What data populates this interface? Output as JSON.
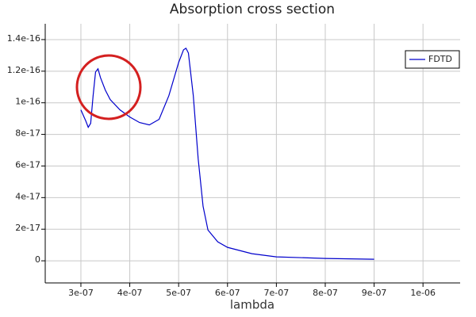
{
  "chart_data": {
    "type": "line",
    "title": "Absorption cross section",
    "x_label": "lambda",
    "x": [
      3e-07,
      3.1e-07,
      3.15e-07,
      3.2e-07,
      3.25e-07,
      3.3e-07,
      3.35e-07,
      3.4e-07,
      3.5e-07,
      3.6e-07,
      3.8e-07,
      4e-07,
      4.2e-07,
      4.4e-07,
      4.6e-07,
      4.8e-07,
      5e-07,
      5.1e-07,
      5.15e-07,
      5.2e-07,
      5.3e-07,
      5.4e-07,
      5.5e-07,
      5.6e-07,
      5.8e-07,
      6e-07,
      6.5e-07,
      7e-07,
      8e-07,
      9e-07
    ],
    "series": [
      {
        "name": "FDTD",
        "color": "#0000cc",
        "values": [
          9.55e-17,
          8.85e-17,
          8.45e-17,
          8.7e-17,
          1.045e-16,
          1.195e-16,
          1.215e-16,
          1.16e-16,
          1.08e-16,
          1.02e-16,
          9.55e-17,
          9.1e-17,
          8.75e-17,
          8.6e-17,
          8.95e-17,
          1.045e-16,
          1.255e-16,
          1.335e-16,
          1.345e-16,
          1.315e-16,
          1.045e-16,
          6.45e-17,
          3.45e-17,
          1.95e-17,
          1.2e-17,
          8.5e-18,
          4.5e-18,
          2.5e-18,
          1.5e-18,
          1e-18
        ]
      }
    ],
    "xlim": [
      2.27e-07,
      1.076e-06
    ],
    "xticks": [
      {
        "value": 3e-07,
        "label": "3e-07"
      },
      {
        "value": 4e-07,
        "label": "4e-07"
      },
      {
        "value": 5e-07,
        "label": "5e-07"
      },
      {
        "value": 6e-07,
        "label": "6e-07"
      },
      {
        "value": 7e-07,
        "label": "7e-07"
      },
      {
        "value": 8e-07,
        "label": "8e-07"
      },
      {
        "value": 9e-07,
        "label": "9e-07"
      },
      {
        "value": 1e-06,
        "label": "1e-06"
      }
    ],
    "ylim": [
      -1.4e-17,
      1.5e-16
    ],
    "yticks": [
      0,
      {
        "value": 2e-17,
        "label": "2e-17"
      },
      {
        "value": 4e-17,
        "label": "4e-17"
      },
      {
        "value": 6e-17,
        "label": "6e-17"
      },
      {
        "value": 8e-17,
        "label": "8e-17"
      },
      {
        "value": 1e-16,
        "label": "1e-16"
      },
      {
        "value": 1.2e-16,
        "label": "1.2e-16"
      },
      {
        "value": 1.4e-16,
        "label": "1.4e-16"
      }
    ],
    "grid": true,
    "legend": "upper right"
  }
}
